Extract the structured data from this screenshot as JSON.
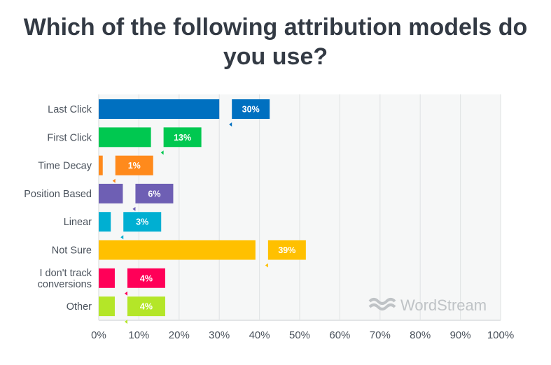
{
  "chart_data": {
    "type": "bar",
    "orientation": "horizontal",
    "title": "Which of the following attribution models do you use?",
    "categories": [
      "Last Click",
      "First Click",
      "Time Decay",
      "Position Based",
      "Linear",
      "Not Sure",
      "I don't track conversions",
      "Other"
    ],
    "values": [
      30,
      13,
      1,
      6,
      3,
      39,
      4,
      4
    ],
    "data_labels": [
      "30%",
      "13%",
      "1%",
      "6%",
      "3%",
      "39%",
      "4%",
      "4%"
    ],
    "colors": [
      "#0070c0",
      "#00c850",
      "#ff8a1c",
      "#6e5fb4",
      "#00afd2",
      "#ffc000",
      "#ff0058",
      "#b4e628"
    ],
    "xlim": [
      0,
      100
    ],
    "x_ticks": [
      0,
      10,
      20,
      30,
      40,
      50,
      60,
      70,
      80,
      90,
      100
    ],
    "x_tick_labels": [
      "0%",
      "10%",
      "20%",
      "30%",
      "40%",
      "50%",
      "60%",
      "70%",
      "80%",
      "90%",
      "100%"
    ],
    "grid": true,
    "watermark": "WordStream"
  }
}
